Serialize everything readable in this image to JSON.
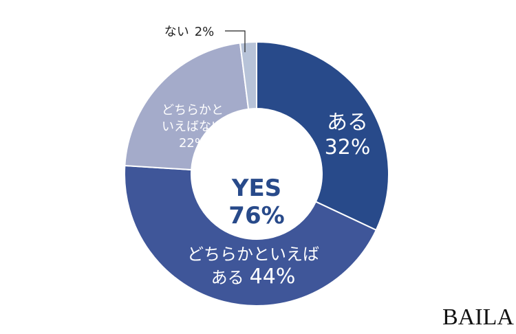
{
  "chart_data": {
    "type": "donut",
    "categories": [
      [
        "ある"
      ],
      [
        "どちらかといえば",
        "ある"
      ],
      [
        "どちらかと",
        "いえばない"
      ],
      [
        "ない"
      ]
    ],
    "values": [
      32,
      44,
      22,
      2
    ],
    "value_labels": [
      "32%",
      "44%",
      "22%",
      "2%"
    ],
    "colors": [
      "#284a8a",
      "#3f5699",
      "#a4abca",
      "#b7c3d8"
    ],
    "center": {
      "text": "YES",
      "value": 76,
      "value_label": "76%"
    }
  },
  "brand": "BAILA"
}
